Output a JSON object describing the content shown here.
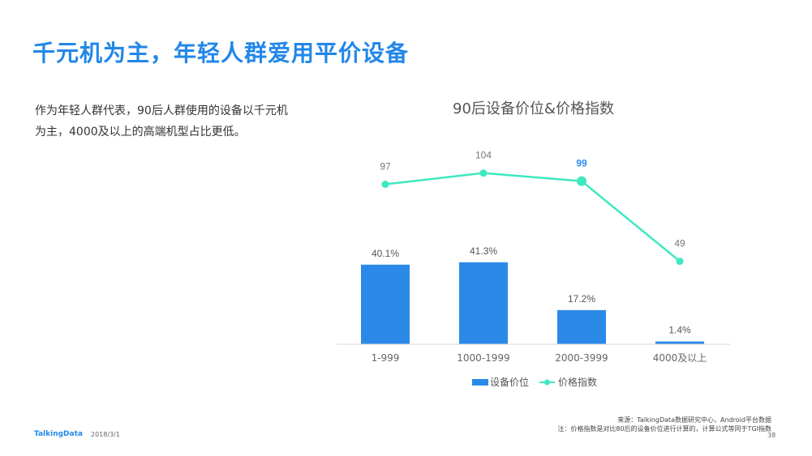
{
  "page": {
    "title": "千元机为主，年轻人群爱用平价设备",
    "description": "作为年轻人群代表，90后人群使用的设备以千元机为主，4000及以上的高端机型占比更低。",
    "brand": "TalkingData",
    "date": "2018/3/1",
    "source_line1": "来源：TalkingData数据研究中心，Android平台数据",
    "source_line2": "注：价格指数是对比80后的设备价位进行计算的，计算公式等同于TGI指数",
    "page_number": "38"
  },
  "chart_data": {
    "type": "bar",
    "title": "90后设备价位&价格指数",
    "categories": [
      "1-999",
      "1000-1999",
      "2000-3999",
      "4000及以上"
    ],
    "series": [
      {
        "name": "设备价位",
        "type": "bar",
        "values": [
          40.1,
          41.3,
          17.2,
          1.4
        ],
        "labels": [
          "40.1%",
          "41.3%",
          "17.2%",
          "1.4%"
        ],
        "color": "#2b8ae8"
      },
      {
        "name": "价格指数",
        "type": "line",
        "values": [
          97,
          104,
          99,
          49
        ],
        "labels": [
          "97",
          "104",
          "99",
          "49"
        ],
        "color": "#3ee8c0",
        "highlight_index": 2,
        "highlight_color": "#2b8ae8"
      }
    ],
    "legend_position": "bottom",
    "grid": false
  }
}
